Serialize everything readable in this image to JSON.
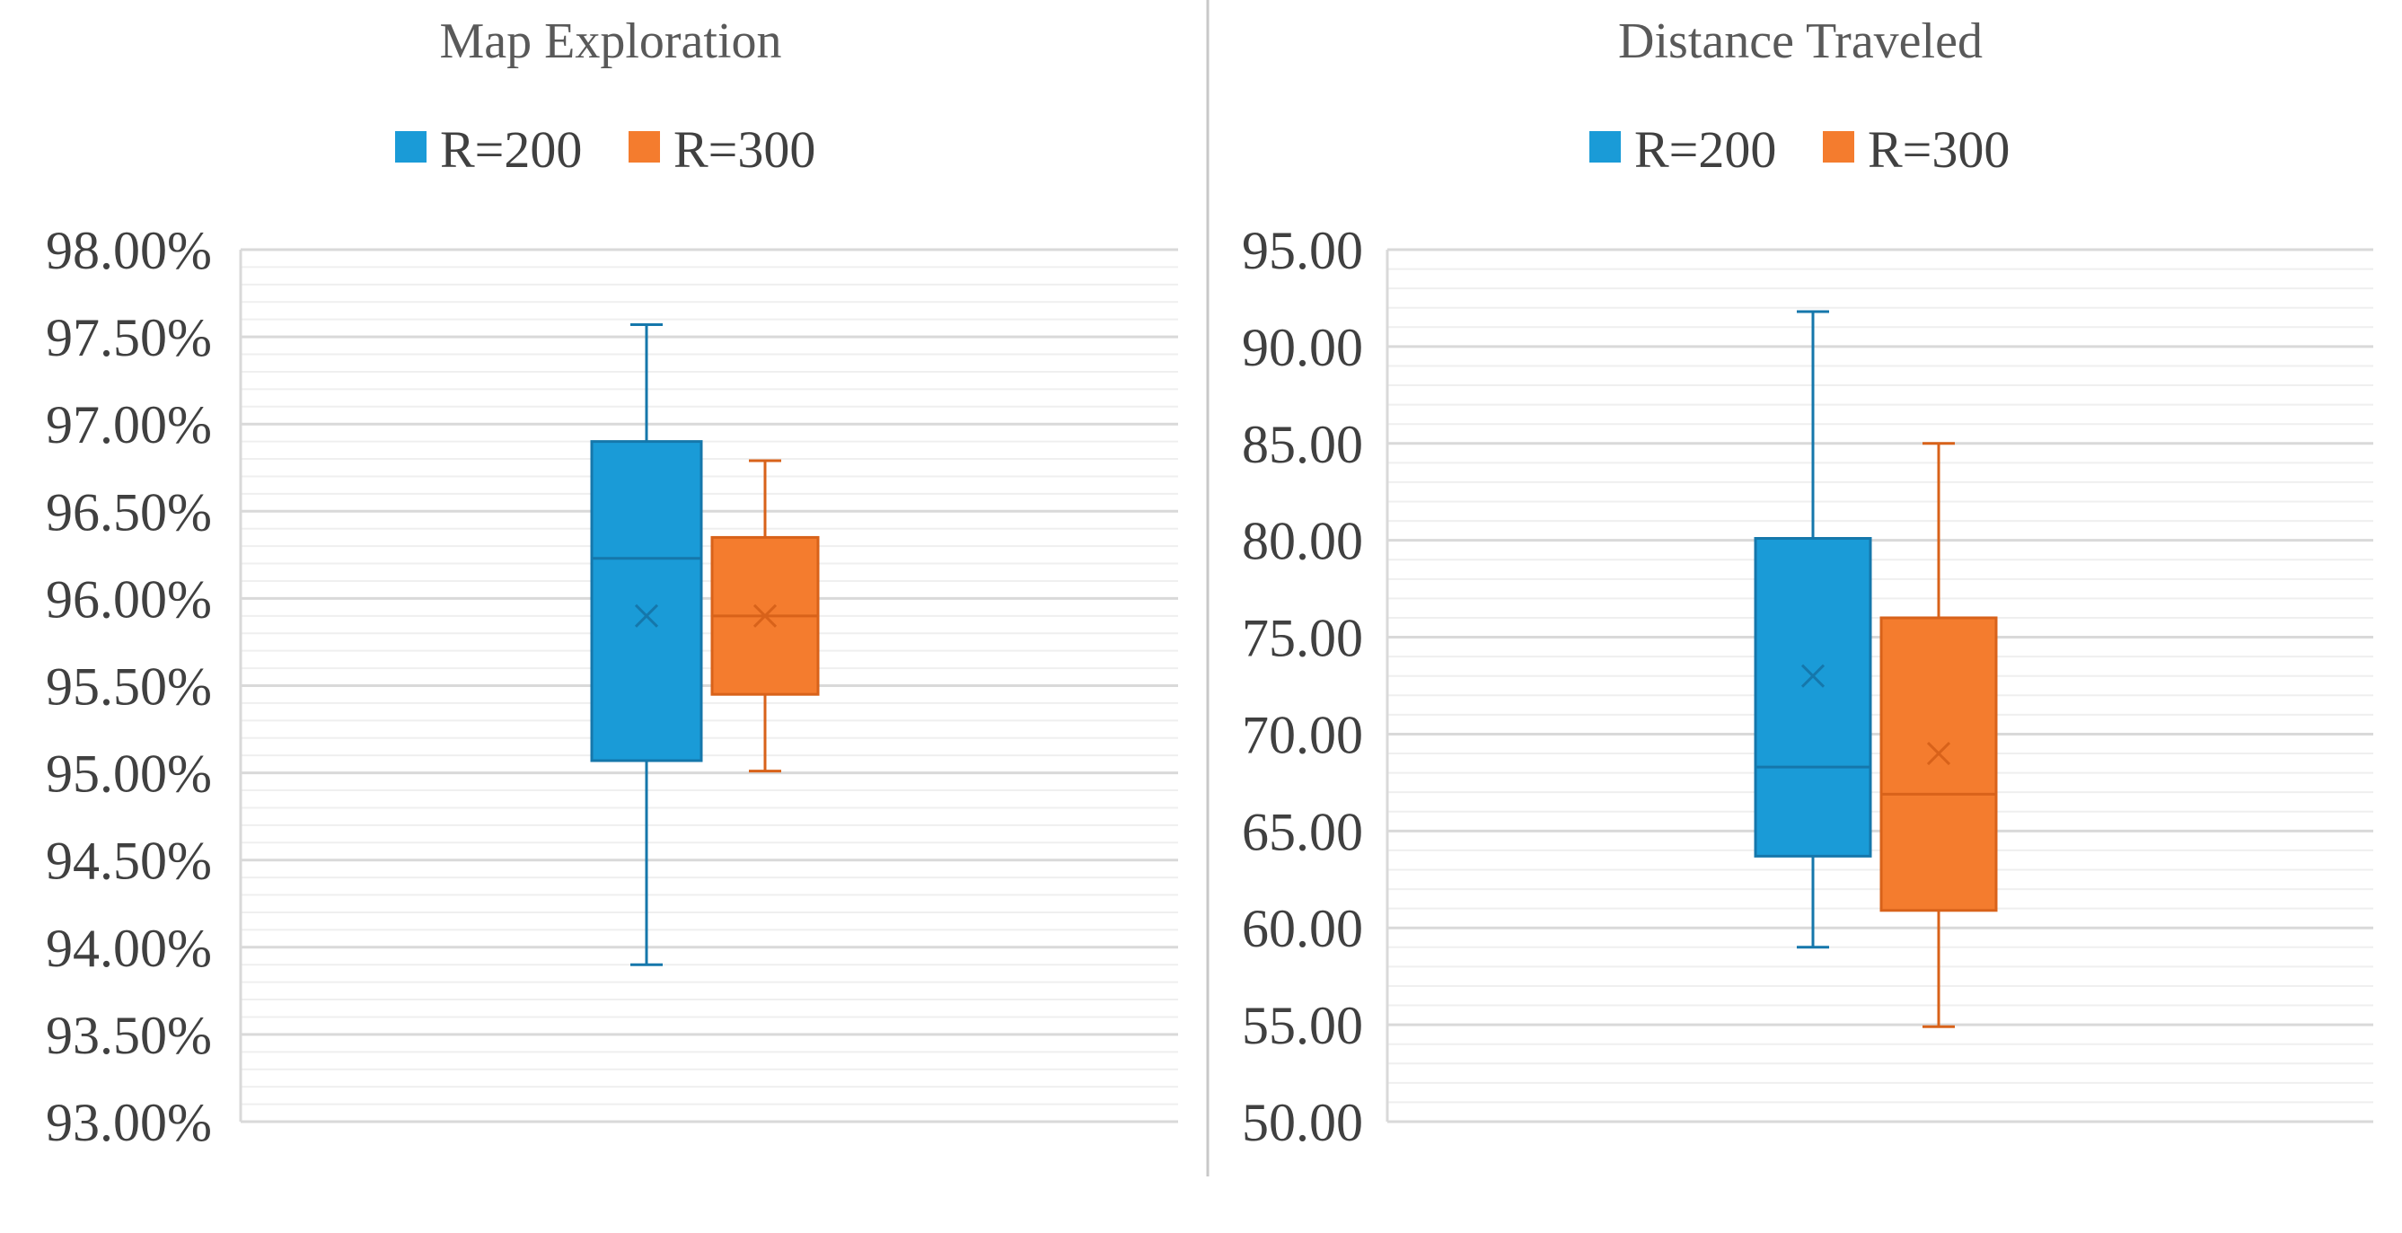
{
  "colors": {
    "series_r200": "#1a9bd7",
    "series_r200_line": "#1577ab",
    "series_r300": "#f47c2e",
    "series_r300_line": "#d8621a",
    "grid_major": "#d9d9d9",
    "grid_minor": "#efefef",
    "divider": "#c8c8c8",
    "text": "#404040"
  },
  "chart_data": [
    {
      "type": "box",
      "title": "Map Exploration",
      "legend": [
        "R=200",
        "R=300"
      ],
      "legend_position": "top",
      "y_ticks": [
        "93.00%",
        "93.50%",
        "94.00%",
        "94.50%",
        "95.00%",
        "95.50%",
        "96.00%",
        "96.50%",
        "97.00%",
        "97.50%",
        "98.00%"
      ],
      "ylim": [
        93.0,
        98.0
      ],
      "y_major_step": 0.5,
      "y_minor_step": 0.1,
      "grid": true,
      "series": [
        {
          "name": "R=200",
          "min": 93.9,
          "q1": 95.07,
          "median": 96.23,
          "q3": 96.9,
          "max": 97.57,
          "mean": 95.9
        },
        {
          "name": "R=300",
          "min": 95.01,
          "q1": 95.45,
          "median": 95.9,
          "q3": 96.35,
          "max": 96.79,
          "mean": 95.9
        }
      ]
    },
    {
      "type": "box",
      "title": "Distance Traveled",
      "legend": [
        "R=200",
        "R=300"
      ],
      "legend_position": "top",
      "y_ticks": [
        "50.00",
        "55.00",
        "60.00",
        "65.00",
        "70.00",
        "75.00",
        "80.00",
        "85.00",
        "90.00",
        "95.00"
      ],
      "ylim": [
        50,
        95
      ],
      "y_major_step": 5,
      "y_minor_step": 1,
      "grid": true,
      "series": [
        {
          "name": "R=200",
          "min": 59.0,
          "q1": 63.7,
          "median": 68.3,
          "q3": 80.1,
          "max": 91.8,
          "mean": 73.0
        },
        {
          "name": "R=300",
          "min": 54.9,
          "q1": 60.9,
          "median": 66.9,
          "q3": 76.0,
          "max": 85.0,
          "mean": 69.0
        }
      ]
    }
  ]
}
